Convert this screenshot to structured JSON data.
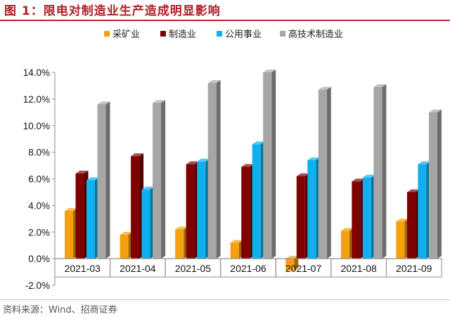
{
  "header": {
    "title": "图 1：限电对制造业生产造成明显影响"
  },
  "footer": {
    "source": "资料来源：Wind、招商证券"
  },
  "chart_data": {
    "type": "bar",
    "title": "图 1：限电对制造业生产造成明显影响",
    "categories": [
      "2021-03",
      "2021-04",
      "2021-05",
      "2021-06",
      "2021-07",
      "2021-08",
      "2021-09"
    ],
    "series": [
      {
        "name": "采矿业",
        "color": "#f5a10f",
        "values": [
          3.6,
          1.8,
          2.2,
          1.2,
          -0.9,
          2.1,
          2.8
        ]
      },
      {
        "name": "制造业",
        "color": "#800000",
        "values": [
          6.4,
          7.7,
          7.1,
          6.9,
          6.2,
          5.8,
          5.0
        ]
      },
      {
        "name": "公用事业",
        "color": "#0fb0ef",
        "values": [
          5.9,
          5.2,
          7.3,
          8.6,
          7.4,
          6.1,
          7.1
        ]
      },
      {
        "name": "高技术制造业",
        "color": "#a6a6a6",
        "values": [
          11.6,
          11.7,
          13.2,
          14.0,
          12.7,
          12.9,
          11.0
        ]
      }
    ],
    "yticks": [
      "-2.0%",
      "0.0%",
      "2.0%",
      "4.0%",
      "6.0%",
      "8.0%",
      "10.0%",
      "12.0%",
      "14.0%"
    ],
    "ylim": [
      -2,
      14
    ],
    "xlabel": "",
    "ylabel": "",
    "grid": false,
    "legend": "top"
  }
}
